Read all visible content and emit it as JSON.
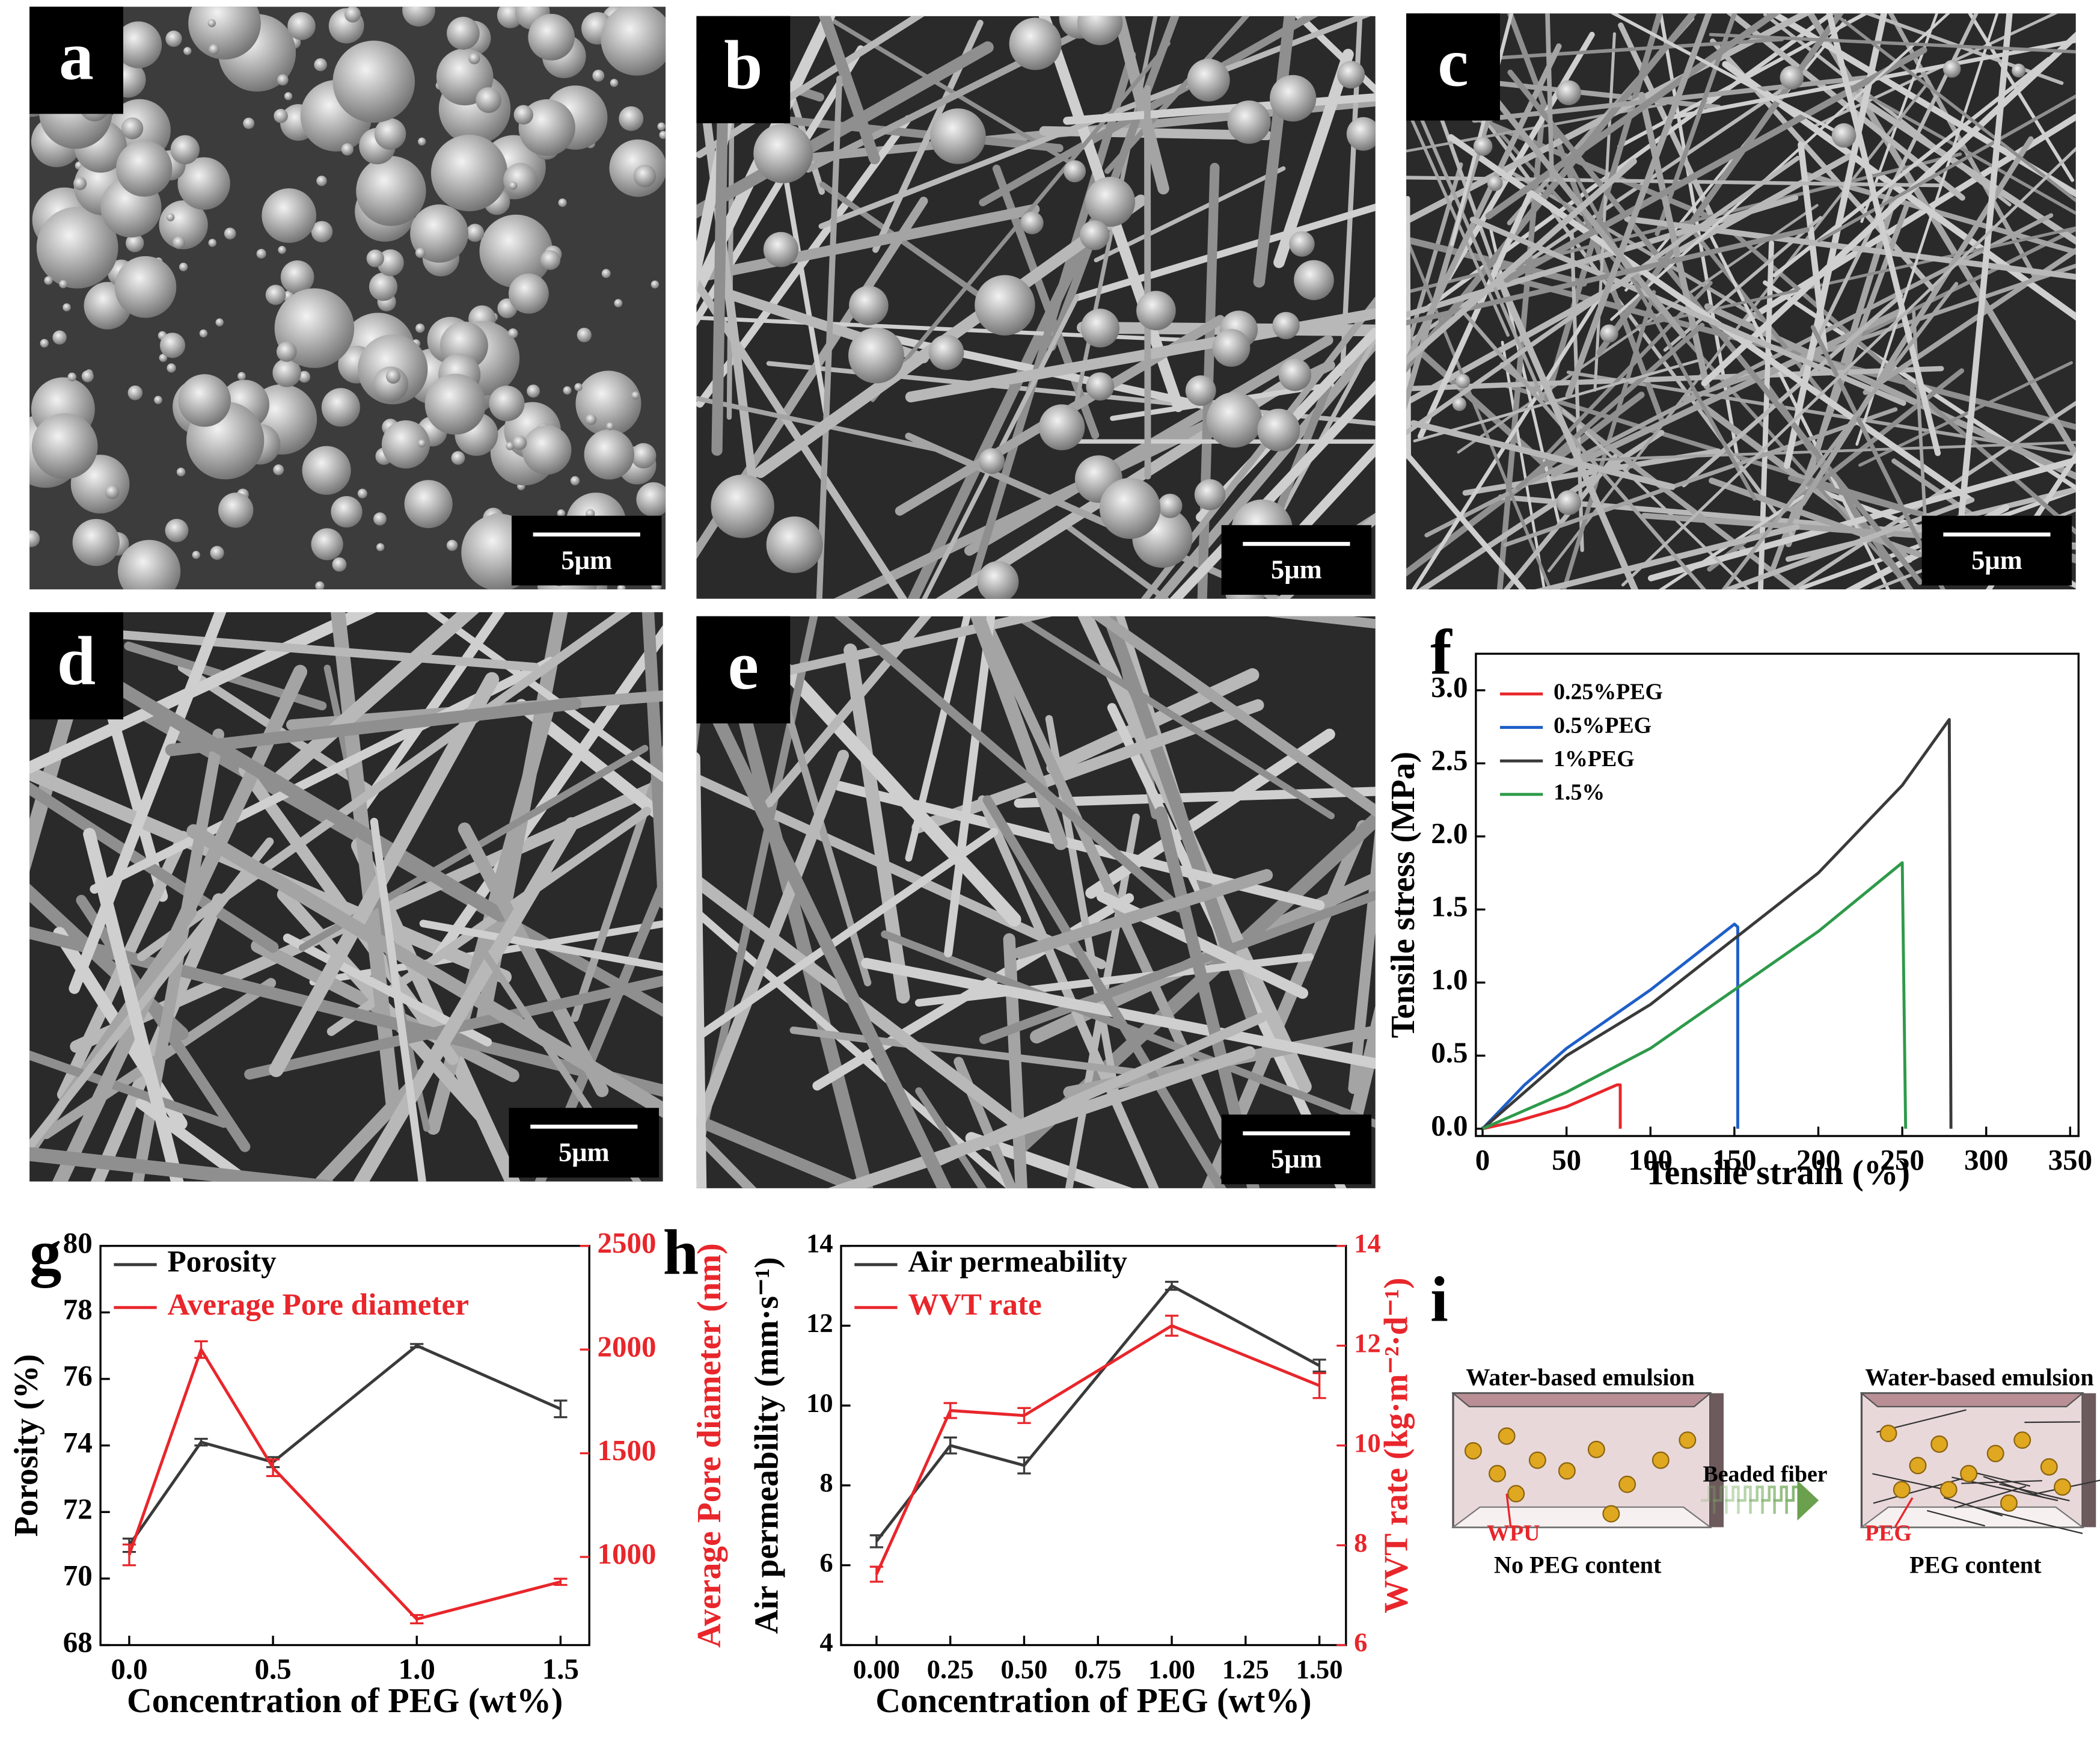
{
  "panels": [
    {
      "label": "a",
      "scale_bar": "5μm"
    },
    {
      "label": "b",
      "scale_bar": "5μm"
    },
    {
      "label": "c",
      "scale_bar": "5μm"
    },
    {
      "label": "d",
      "scale_bar": "5μm"
    },
    {
      "label": "e",
      "scale_bar": "5μm"
    }
  ],
  "chart_data": [
    {
      "type": "line",
      "label": "f",
      "x_label": "Tensile strain (%)",
      "y_label": "Tensile stress (MPa)",
      "xlim": [
        -4,
        355
      ],
      "xticks": [
        0,
        50,
        100,
        150,
        200,
        250,
        300,
        350
      ],
      "ylim": [
        -0.05,
        3.25
      ],
      "yticks": [
        {
          "value": 0,
          "label": "0.0"
        },
        0.5,
        {
          "value": 1,
          "label": "1.0"
        },
        1.5,
        {
          "value": 2,
          "label": "2.0"
        },
        2.5,
        {
          "value": 3,
          "label": "3.0"
        }
      ],
      "legend": "upper left",
      "series": [
        {
          "name": "0.25%PEG",
          "color": "#e8262b",
          "x": [
            0,
            20,
            50,
            80,
            82,
            82
          ],
          "values": [
            0,
            0.05,
            0.15,
            0.3,
            0.3,
            0
          ]
        },
        {
          "name": "0.5%PEG",
          "color": "#1f5fc8",
          "x": [
            0,
            25,
            50,
            100,
            150,
            152,
            152
          ],
          "values": [
            0,
            0.3,
            0.55,
            0.95,
            1.4,
            1.38,
            0
          ]
        },
        {
          "name": "1%PEG",
          "color": "#3a3a3a",
          "x": [
            0,
            50,
            100,
            150,
            200,
            250,
            278,
            279
          ],
          "values": [
            0,
            0.5,
            0.85,
            1.3,
            1.75,
            2.35,
            2.8,
            0
          ]
        },
        {
          "name": "1.5%",
          "color": "#2e9a4a",
          "x": [
            0,
            50,
            100,
            150,
            200,
            250,
            252
          ],
          "values": [
            0,
            0.25,
            0.55,
            0.95,
            1.35,
            1.82,
            0
          ]
        }
      ]
    },
    {
      "type": "line",
      "label": "g",
      "x_label": "Concentration of PEG (wt%)",
      "y_label": "Porosity (%)",
      "y2_label": "Average Pore diameter (nm)",
      "x": [
        0,
        0.25,
        0.5,
        1,
        1.5
      ],
      "xlim": [
        -0.1,
        1.6
      ],
      "xticks": [
        {
          "value": 0,
          "label": "0.0"
        },
        0.5,
        {
          "value": 1,
          "label": "1.0"
        },
        1.5
      ],
      "ylim": [
        68,
        80
      ],
      "yticks": [
        68,
        70,
        72,
        74,
        76,
        78,
        80
      ],
      "y2lim": [
        575,
        2500
      ],
      "y2ticks": [
        1000,
        1500,
        2000,
        2500
      ],
      "legend": "upper left",
      "series": [
        {
          "name": "Porosity",
          "color": "#3a3a3a",
          "values": [
            71,
            74.1,
            73.5,
            77,
            75.1
          ],
          "errors": [
            0.2,
            0.1,
            0.15,
            0.05,
            0.25
          ]
        },
        {
          "name": "Average Pore diameter",
          "color": "#e8262b",
          "axis": "y2",
          "values": [
            1010,
            2000,
            1430,
            700,
            880
          ],
          "errors": [
            50,
            40,
            40,
            20,
            15
          ]
        }
      ]
    },
    {
      "type": "line",
      "label": "h",
      "x_label": "Concentration of PEG (wt%)",
      "y_label": "Air permeability (mm·s⁻¹)",
      "y2_label": "WVT rate (kg·m⁻²·d⁻¹)",
      "x": [
        0,
        0.25,
        0.5,
        1,
        1.5
      ],
      "xlim": [
        -0.12,
        1.59
      ],
      "xticks": [
        {
          "value": 0,
          "label": "0.00"
        },
        0.25,
        {
          "value": 0.5,
          "label": "0.50"
        },
        0.75,
        {
          "value": 1,
          "label": "1.00"
        },
        1.25,
        {
          "value": 1.5,
          "label": "1.50"
        }
      ],
      "ylim": [
        4,
        14
      ],
      "yticks": [
        4,
        6,
        8,
        10,
        12,
        14
      ],
      "y2lim": [
        6,
        14
      ],
      "y2ticks": [
        6,
        8,
        10,
        12,
        14
      ],
      "legend": "upper left",
      "series": [
        {
          "name": "Air permeability",
          "color": "#3a3a3a",
          "values": [
            6.6,
            9,
            8.5,
            13,
            11
          ],
          "errors": [
            0.15,
            0.2,
            0.2,
            0.1,
            0.15
          ]
        },
        {
          "name": "WVT rate",
          "color": "#e8262b",
          "axis": "y2",
          "values": [
            7.42,
            10.7,
            10.6,
            12.4,
            11.2
          ],
          "errors": [
            0.15,
            0.15,
            0.15,
            0.2,
            0.25
          ]
        }
      ]
    }
  ],
  "diagram": {
    "label": "i",
    "left_title": "Water-based emulsion",
    "left_marker": "WPU",
    "left_caption": "No PEG content",
    "arrow_label": "Beaded fiber",
    "right_title": "Water-based emulsion",
    "right_marker": "PEG",
    "right_caption": "PEG content"
  }
}
